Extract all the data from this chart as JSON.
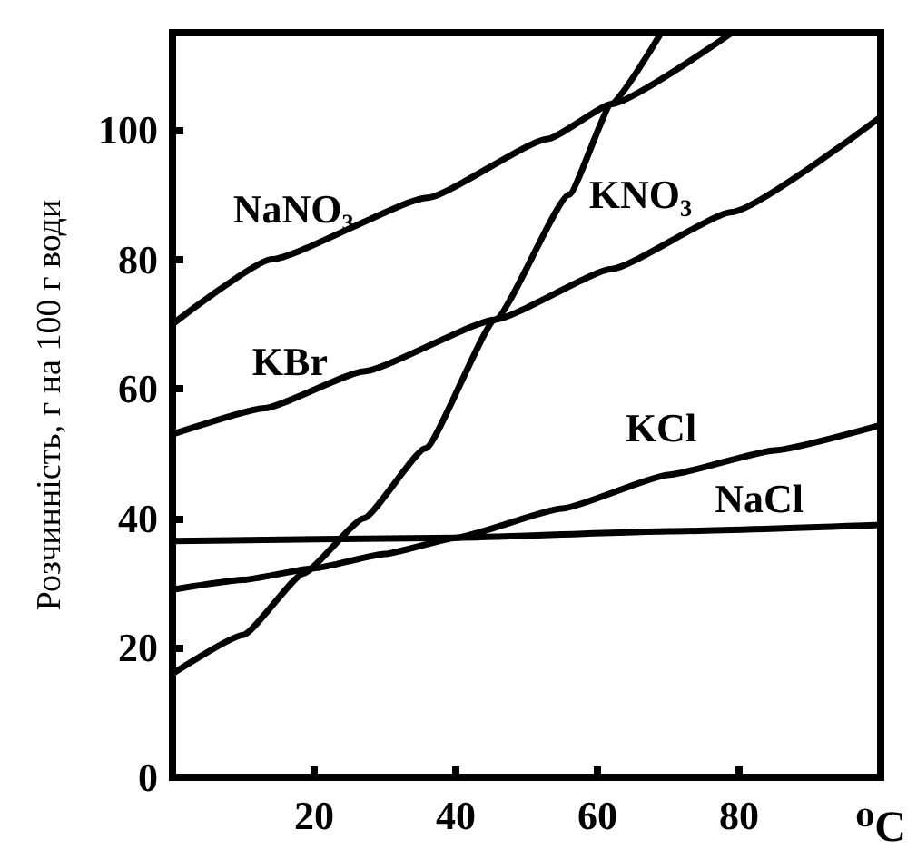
{
  "chart_data": {
    "type": "line",
    "xlabel": "⁰C",
    "ylabel": "Розчинність, г на 100 г води",
    "xlim": [
      0,
      100
    ],
    "ylim": [
      0,
      115
    ],
    "xticks": [
      20,
      40,
      60,
      80
    ],
    "yticks": [
      0,
      20,
      40,
      60,
      80,
      100
    ],
    "grid": false,
    "legend": false,
    "marker": "none",
    "line_style": "solid",
    "series": [
      {
        "name": "NaNO₃",
        "color": "#000000",
        "x": [
          0,
          14,
          36,
          53,
          62,
          79
        ],
        "values": [
          70,
          80,
          89.5,
          98.6,
          104,
          115
        ]
      },
      {
        "name": "KNO₃",
        "color": "#000000",
        "x": [
          0,
          10,
          18.5,
          27,
          35.7,
          45.6,
          56,
          62,
          69
        ],
        "values": [
          16,
          22,
          31.5,
          40,
          50.8,
          70.7,
          90,
          104,
          115
        ]
      },
      {
        "name": "KBr",
        "color": "#000000",
        "x": [
          0,
          13,
          27,
          45.6,
          62,
          79,
          100
        ],
        "values": [
          53,
          57,
          62.7,
          70.7,
          78.5,
          87.3,
          102
        ]
      },
      {
        "name": "KCl",
        "color": "#000000",
        "x": [
          0,
          10,
          20,
          30,
          40,
          55,
          70,
          85,
          100
        ],
        "values": [
          29,
          30.5,
          32.3,
          34.5,
          37,
          41.5,
          46.7,
          50.5,
          54.4
        ]
      },
      {
        "name": "NaCl",
        "color": "#000000",
        "x": [
          0,
          40,
          70,
          100
        ],
        "values": [
          36.5,
          37,
          38,
          39
        ]
      }
    ]
  }
}
